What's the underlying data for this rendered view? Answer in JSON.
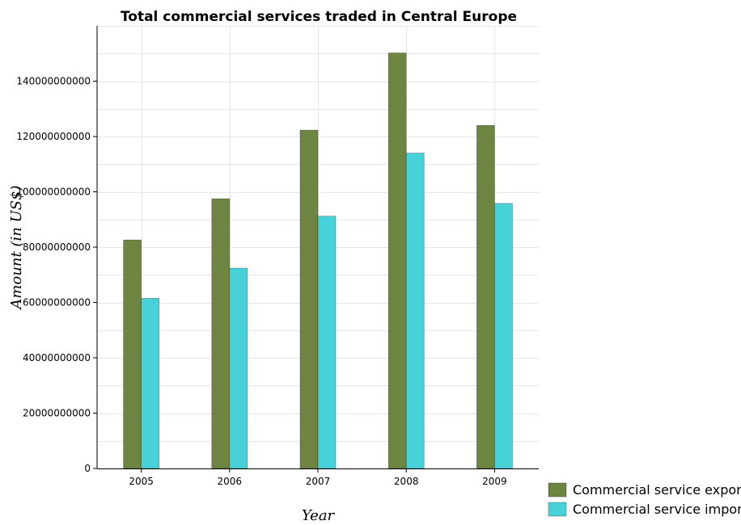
{
  "chart_data": {
    "type": "bar",
    "title": "Total commercial services traded in Central Europe",
    "xlabel": "Year",
    "ylabel": "Amount (in US$)",
    "categories": [
      "2005",
      "2006",
      "2007",
      "2008",
      "2009"
    ],
    "series": [
      {
        "name": "Commercial service exports",
        "color": "#6e8542",
        "values": [
          82600000000,
          97500000000,
          122300000000,
          150200000000,
          124000000000
        ]
      },
      {
        "name": "Commercial service imports",
        "color": "#46d2d8",
        "values": [
          61500000000,
          72400000000,
          91200000000,
          114000000000,
          95800000000
        ]
      }
    ],
    "ylim": [
      0,
      160000000000
    ],
    "yticks": [
      0,
      20000000000,
      40000000000,
      60000000000,
      80000000000,
      100000000000,
      120000000000,
      140000000000
    ],
    "ytick_labels": [
      "0",
      "20000000000",
      "40000000000",
      "60000000000",
      "80000000000",
      "100000000000",
      "120000000000",
      "140000000000"
    ],
    "grid": true,
    "legend_position": "bottom-right"
  }
}
